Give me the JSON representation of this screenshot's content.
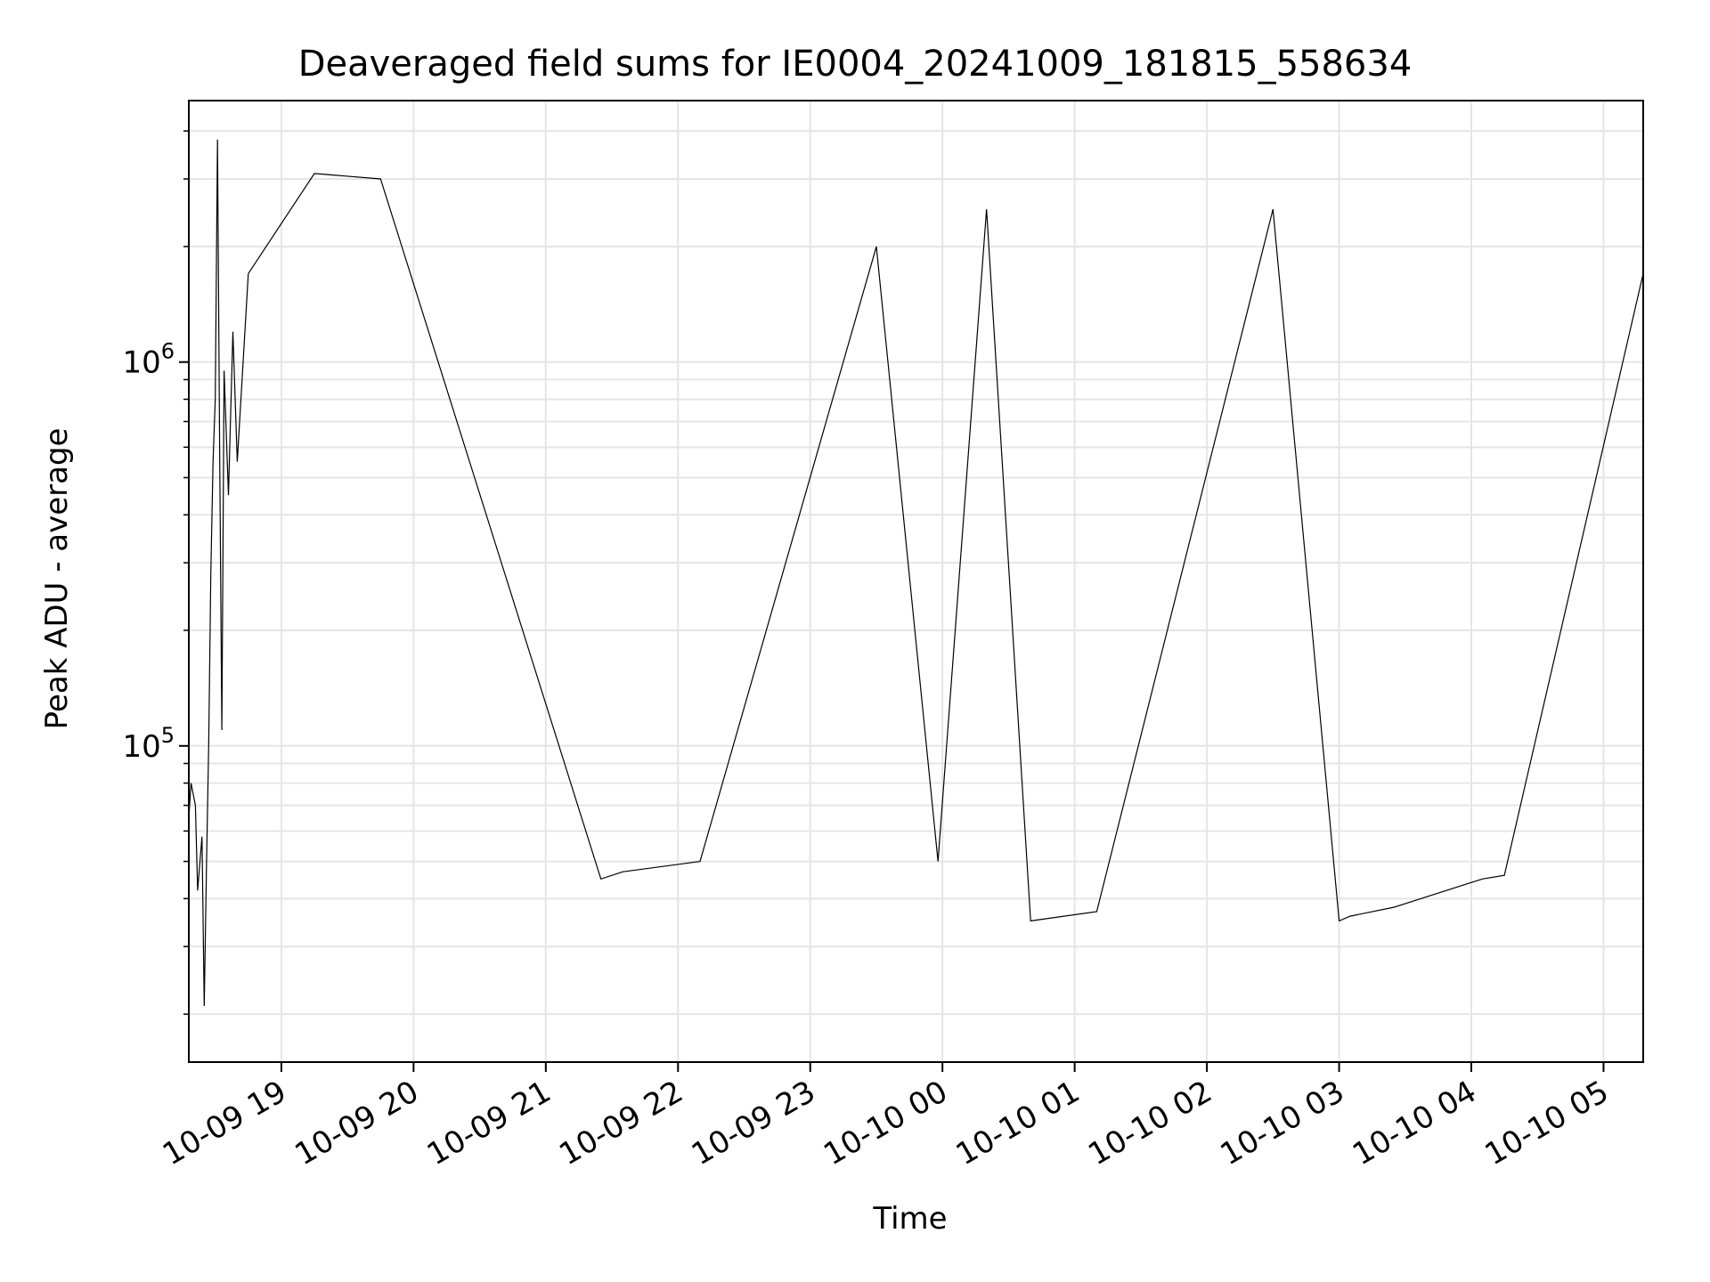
{
  "chart_data": {
    "type": "line",
    "title": "Deaveraged field sums for IE0004_20241009_181815_558634",
    "xlabel": "Time",
    "ylabel": "Peak ADU - average",
    "x_scale": "time",
    "y_scale": "log",
    "xlim": [
      "2024-10-09 18:18",
      "2024-10-10 05:18"
    ],
    "ylim": [
      15000,
      4800000
    ],
    "grid": {
      "major": true,
      "minor_y": true
    },
    "line_color": "#000000",
    "x_ticks": [
      {
        "t": "2024-10-09 19:00",
        "label": "10-09 19"
      },
      {
        "t": "2024-10-09 20:00",
        "label": "10-09 20"
      },
      {
        "t": "2024-10-09 21:00",
        "label": "10-09 21"
      },
      {
        "t": "2024-10-09 22:00",
        "label": "10-09 22"
      },
      {
        "t": "2024-10-09 23:00",
        "label": "10-09 23"
      },
      {
        "t": "2024-10-10 00:00",
        "label": "10-10 00"
      },
      {
        "t": "2024-10-10 01:00",
        "label": "10-10 01"
      },
      {
        "t": "2024-10-10 02:00",
        "label": "10-10 02"
      },
      {
        "t": "2024-10-10 03:00",
        "label": "10-10 03"
      },
      {
        "t": "2024-10-10 04:00",
        "label": "10-10 04"
      },
      {
        "t": "2024-10-10 05:00",
        "label": "10-10 05"
      }
    ],
    "y_ticks": [
      {
        "value": 100000,
        "base": "10",
        "exp": "5"
      },
      {
        "value": 1000000,
        "base": "10",
        "exp": "6"
      }
    ],
    "series": [
      {
        "points": [
          [
            "2024-10-09 18:18",
            65000
          ],
          [
            "2024-10-09 18:19",
            80000
          ],
          [
            "2024-10-09 18:21",
            70000
          ],
          [
            "2024-10-09 18:22",
            42000
          ],
          [
            "2024-10-09 18:24",
            58000
          ],
          [
            "2024-10-09 18:25",
            21000
          ],
          [
            "2024-10-09 18:26",
            48000
          ],
          [
            "2024-10-09 18:27",
            100000
          ],
          [
            "2024-10-09 18:28",
            280000
          ],
          [
            "2024-10-09 18:29",
            550000
          ],
          [
            "2024-10-09 18:30",
            800000
          ],
          [
            "2024-10-09 18:31",
            3800000
          ],
          [
            "2024-10-09 18:32",
            600000
          ],
          [
            "2024-10-09 18:33",
            110000
          ],
          [
            "2024-10-09 18:34",
            950000
          ],
          [
            "2024-10-09 18:36",
            450000
          ],
          [
            "2024-10-09 18:38",
            1200000
          ],
          [
            "2024-10-09 18:40",
            550000
          ],
          [
            "2024-10-09 18:45",
            1700000
          ],
          [
            "2024-10-09 19:15",
            3100000
          ],
          [
            "2024-10-09 19:45",
            3000000
          ],
          [
            "2024-10-09 21:25",
            45000
          ],
          [
            "2024-10-09 21:35",
            47000
          ],
          [
            "2024-10-09 22:10",
            50000
          ],
          [
            "2024-10-09 23:30",
            2000000
          ],
          [
            "2024-10-09 23:58",
            50000
          ],
          [
            "2024-10-10 00:20",
            2500000
          ],
          [
            "2024-10-10 00:40",
            35000
          ],
          [
            "2024-10-10 01:10",
            37000
          ],
          [
            "2024-10-10 02:30",
            2500000
          ],
          [
            "2024-10-10 03:00",
            35000
          ],
          [
            "2024-10-10 03:05",
            36000
          ],
          [
            "2024-10-10 03:25",
            38000
          ],
          [
            "2024-10-10 04:05",
            45000
          ],
          [
            "2024-10-10 04:15",
            46000
          ],
          [
            "2024-10-10 05:18",
            1700000
          ]
        ]
      }
    ]
  }
}
